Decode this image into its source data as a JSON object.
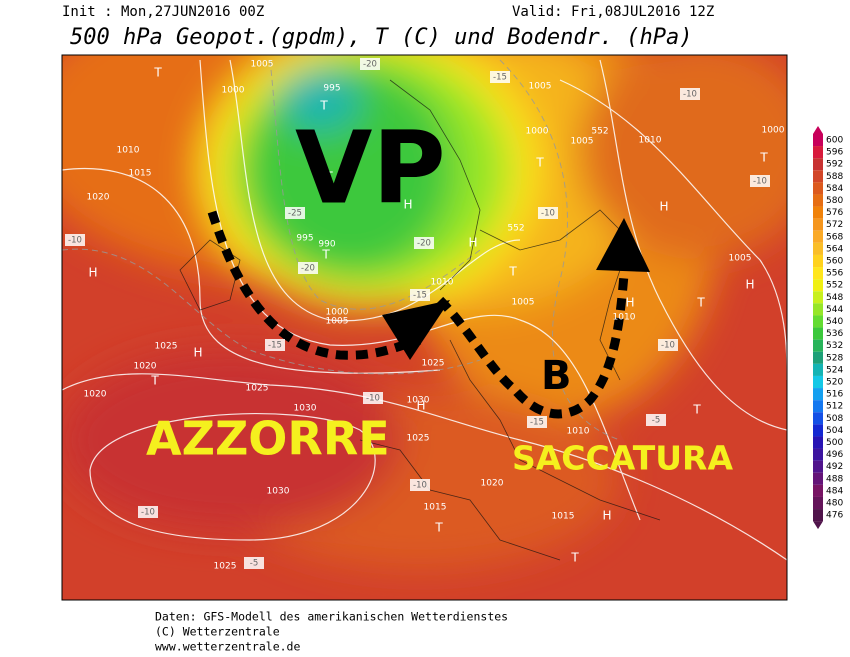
{
  "header": {
    "init": "Init : Mon,27JUN2016 00Z",
    "valid": "Valid: Fri,08JUL2016 12Z",
    "title": "500 hPa Geopot.(gpdm), T (C) und Bodendr. (hPa)"
  },
  "annotations": {
    "vp": "VP",
    "b": "B",
    "azzorre": "AZZORRE",
    "saccatura": "SACCATURA"
  },
  "isobar_labels": [
    "1005",
    "995",
    "1000",
    "1010",
    "1015",
    "1020",
    "995",
    "990",
    "1000",
    "1005",
    "1010",
    "1005",
    "1000",
    "1005",
    "1010",
    "1000",
    "1005",
    "1005",
    "1010",
    "1025",
    "1020",
    "1020",
    "1025",
    "1030",
    "1025",
    "1030",
    "1025",
    "1030",
    "1020",
    "1015",
    "1015",
    "1025",
    "1010",
    "552",
    "552"
  ],
  "pressure_centers": [
    "H",
    "H",
    "H",
    "H",
    "H",
    "H",
    "H",
    "H",
    "H",
    "T",
    "T",
    "T",
    "T",
    "T",
    "T",
    "T",
    "T",
    "T",
    "T",
    "T",
    "T"
  ],
  "temperature_labels": [
    "-20",
    "-15",
    "-10",
    "-25",
    "-20",
    "-20",
    "-15",
    "-15",
    "-10",
    "-10",
    "-10",
    "-10",
    "-10",
    "-5",
    "-5",
    "-10",
    "-15",
    "-10"
  ],
  "legend": {
    "levels": [
      600,
      596,
      592,
      588,
      584,
      580,
      576,
      572,
      568,
      564,
      560,
      556,
      552,
      548,
      544,
      540,
      536,
      532,
      528,
      524,
      520,
      516,
      512,
      508,
      504,
      500,
      496,
      492,
      488,
      484,
      480,
      476
    ],
    "colors": [
      "#c8005a",
      "#d81a3c",
      "#c83232",
      "#d24628",
      "#dc5a1e",
      "#e66e14",
      "#f0820a",
      "#f5961e",
      "#faaa28",
      "#fabe28",
      "#ffd21e",
      "#ffe61e",
      "#f0f014",
      "#c8f01e",
      "#96e628",
      "#64dc32",
      "#3cc83c",
      "#28b45a",
      "#1ea078",
      "#14b4b4",
      "#14c8e6",
      "#14a0f0",
      "#1478f0",
      "#1450e6",
      "#1428d2",
      "#2814b4",
      "#3c14a0",
      "#50148c",
      "#641478",
      "#781464",
      "#64145a",
      "#50144b"
    ]
  },
  "footer": [
    "Daten: GFS-Modell des amerikanischen Wetterdienstes",
    "(C) Wetterzentrale",
    "www.wetterzentrale.de"
  ]
}
